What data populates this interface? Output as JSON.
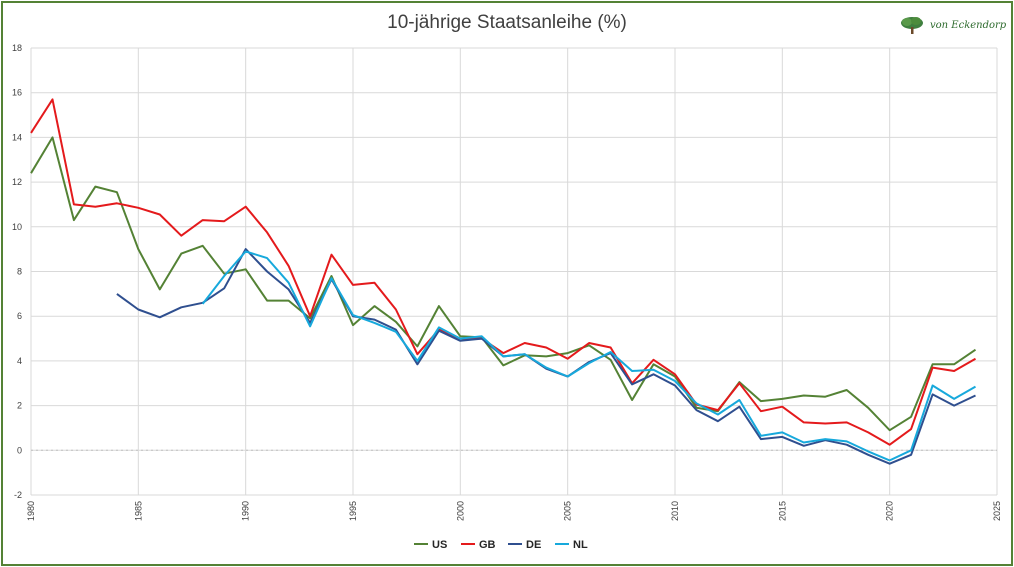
{
  "chart_data": {
    "type": "line",
    "title": "10-jährige Staatsanleihe (%)",
    "xlim": [
      1980,
      2025
    ],
    "ylim": [
      -2,
      18
    ],
    "xticks": [
      1980,
      1985,
      1990,
      1995,
      2000,
      2005,
      2010,
      2015,
      2020,
      2025
    ],
    "yticks": [
      -2,
      0,
      2,
      4,
      6,
      8,
      10,
      12,
      14,
      16,
      18
    ],
    "grid": true,
    "legend": "bottom",
    "series": [
      {
        "name": "US",
        "color": "#548235",
        "points": [
          [
            1980,
            12.4
          ],
          [
            1981,
            14.0
          ],
          [
            1982,
            10.3
          ],
          [
            1983,
            11.8
          ],
          [
            1984,
            11.55
          ],
          [
            1985,
            9.0
          ],
          [
            1986,
            7.2
          ],
          [
            1987,
            8.8
          ],
          [
            1988,
            9.15
          ],
          [
            1989,
            7.9
          ],
          [
            1990,
            8.1
          ],
          [
            1991,
            6.7
          ],
          [
            1992,
            6.7
          ],
          [
            1993,
            5.9
          ],
          [
            1994,
            7.8
          ],
          [
            1995,
            5.6
          ],
          [
            1996,
            6.45
          ],
          [
            1997,
            5.75
          ],
          [
            1998,
            4.65
          ],
          [
            1999,
            6.45
          ],
          [
            2000,
            5.1
          ],
          [
            2001,
            5.05
          ],
          [
            2002,
            3.8
          ],
          [
            2003,
            4.25
          ],
          [
            2004,
            4.2
          ],
          [
            2005,
            4.35
          ],
          [
            2006,
            4.7
          ],
          [
            2007,
            4.05
          ],
          [
            2008,
            2.25
          ],
          [
            2009,
            3.85
          ],
          [
            2010,
            3.3
          ],
          [
            2011,
            1.9
          ],
          [
            2012,
            1.75
          ],
          [
            2013,
            3.05
          ],
          [
            2014,
            2.2
          ],
          [
            2015,
            2.3
          ],
          [
            2016,
            2.45
          ],
          [
            2017,
            2.4
          ],
          [
            2018,
            2.7
          ],
          [
            2019,
            1.9
          ],
          [
            2020,
            0.9
          ],
          [
            2021,
            1.5
          ],
          [
            2022,
            3.85
          ],
          [
            2023,
            3.85
          ],
          [
            2024,
            4.5
          ]
        ]
      },
      {
        "name": "GB",
        "color": "#e41a1c",
        "points": [
          [
            1980,
            14.2
          ],
          [
            1981,
            15.7
          ],
          [
            1982,
            11.0
          ],
          [
            1983,
            10.9
          ],
          [
            1984,
            11.05
          ],
          [
            1985,
            10.85
          ],
          [
            1986,
            10.55
          ],
          [
            1987,
            9.6
          ],
          [
            1988,
            10.3
          ],
          [
            1989,
            10.25
          ],
          [
            1990,
            10.9
          ],
          [
            1991,
            9.75
          ],
          [
            1992,
            8.25
          ],
          [
            1993,
            6.0
          ],
          [
            1994,
            8.75
          ],
          [
            1995,
            7.4
          ],
          [
            1996,
            7.5
          ],
          [
            1997,
            6.3
          ],
          [
            1998,
            4.3
          ],
          [
            1999,
            5.4
          ],
          [
            2000,
            5.0
          ],
          [
            2001,
            5.0
          ],
          [
            2002,
            4.35
          ],
          [
            2003,
            4.8
          ],
          [
            2004,
            4.6
          ],
          [
            2005,
            4.1
          ],
          [
            2006,
            4.8
          ],
          [
            2007,
            4.6
          ],
          [
            2008,
            3.0
          ],
          [
            2009,
            4.05
          ],
          [
            2010,
            3.4
          ],
          [
            2011,
            2.05
          ],
          [
            2012,
            1.8
          ],
          [
            2013,
            3.0
          ],
          [
            2014,
            1.75
          ],
          [
            2015,
            1.95
          ],
          [
            2016,
            1.25
          ],
          [
            2017,
            1.2
          ],
          [
            2018,
            1.25
          ],
          [
            2019,
            0.8
          ],
          [
            2020,
            0.25
          ],
          [
            2021,
            0.95
          ],
          [
            2022,
            3.7
          ],
          [
            2023,
            3.55
          ],
          [
            2024,
            4.1
          ]
        ]
      },
      {
        "name": "DE",
        "color": "#2f4f8f",
        "points": [
          [
            1984,
            7.0
          ],
          [
            1985,
            6.3
          ],
          [
            1986,
            5.95
          ],
          [
            1987,
            6.4
          ],
          [
            1988,
            6.6
          ],
          [
            1989,
            7.25
          ],
          [
            1990,
            9.0
          ],
          [
            1991,
            8.0
          ],
          [
            1992,
            7.2
          ],
          [
            1993,
            5.7
          ],
          [
            1994,
            7.65
          ],
          [
            1995,
            6.0
          ],
          [
            1996,
            5.85
          ],
          [
            1997,
            5.4
          ],
          [
            1998,
            3.85
          ],
          [
            1999,
            5.35
          ],
          [
            2000,
            4.9
          ],
          [
            2001,
            5.0
          ],
          [
            2002,
            4.2
          ],
          [
            2003,
            4.3
          ],
          [
            2004,
            3.65
          ],
          [
            2005,
            3.3
          ],
          [
            2006,
            3.95
          ],
          [
            2007,
            4.35
          ],
          [
            2008,
            2.95
          ],
          [
            2009,
            3.4
          ],
          [
            2010,
            2.9
          ],
          [
            2011,
            1.8
          ],
          [
            2012,
            1.3
          ],
          [
            2013,
            1.95
          ],
          [
            2014,
            0.5
          ],
          [
            2015,
            0.6
          ],
          [
            2016,
            0.2
          ],
          [
            2017,
            0.45
          ],
          [
            2018,
            0.25
          ],
          [
            2019,
            -0.2
          ],
          [
            2020,
            -0.6
          ],
          [
            2021,
            -0.2
          ],
          [
            2022,
            2.5
          ],
          [
            2023,
            2.0
          ],
          [
            2024,
            2.45
          ]
        ]
      },
      {
        "name": "NL",
        "color": "#17a9dc",
        "points": [
          [
            1988,
            6.55
          ],
          [
            1989,
            7.8
          ],
          [
            1990,
            8.9
          ],
          [
            1991,
            8.6
          ],
          [
            1992,
            7.5
          ],
          [
            1993,
            5.55
          ],
          [
            1994,
            7.7
          ],
          [
            1995,
            6.05
          ],
          [
            1996,
            5.7
          ],
          [
            1997,
            5.3
          ],
          [
            1998,
            4.0
          ],
          [
            1999,
            5.5
          ],
          [
            2000,
            5.0
          ],
          [
            2001,
            5.1
          ],
          [
            2002,
            4.2
          ],
          [
            2003,
            4.3
          ],
          [
            2004,
            3.7
          ],
          [
            2005,
            3.3
          ],
          [
            2006,
            3.9
          ],
          [
            2007,
            4.4
          ],
          [
            2008,
            3.55
          ],
          [
            2009,
            3.6
          ],
          [
            2010,
            3.1
          ],
          [
            2011,
            2.1
          ],
          [
            2012,
            1.6
          ],
          [
            2013,
            2.25
          ],
          [
            2014,
            0.65
          ],
          [
            2015,
            0.8
          ],
          [
            2016,
            0.35
          ],
          [
            2017,
            0.5
          ],
          [
            2018,
            0.4
          ],
          [
            2019,
            -0.05
          ],
          [
            2020,
            -0.45
          ],
          [
            2021,
            0.0
          ],
          [
            2022,
            2.9
          ],
          [
            2023,
            2.3
          ],
          [
            2024,
            2.85
          ]
        ]
      }
    ]
  },
  "logo": {
    "text": "von Eckendorp",
    "icon": "tree-icon",
    "color": "#2e6b2e"
  }
}
